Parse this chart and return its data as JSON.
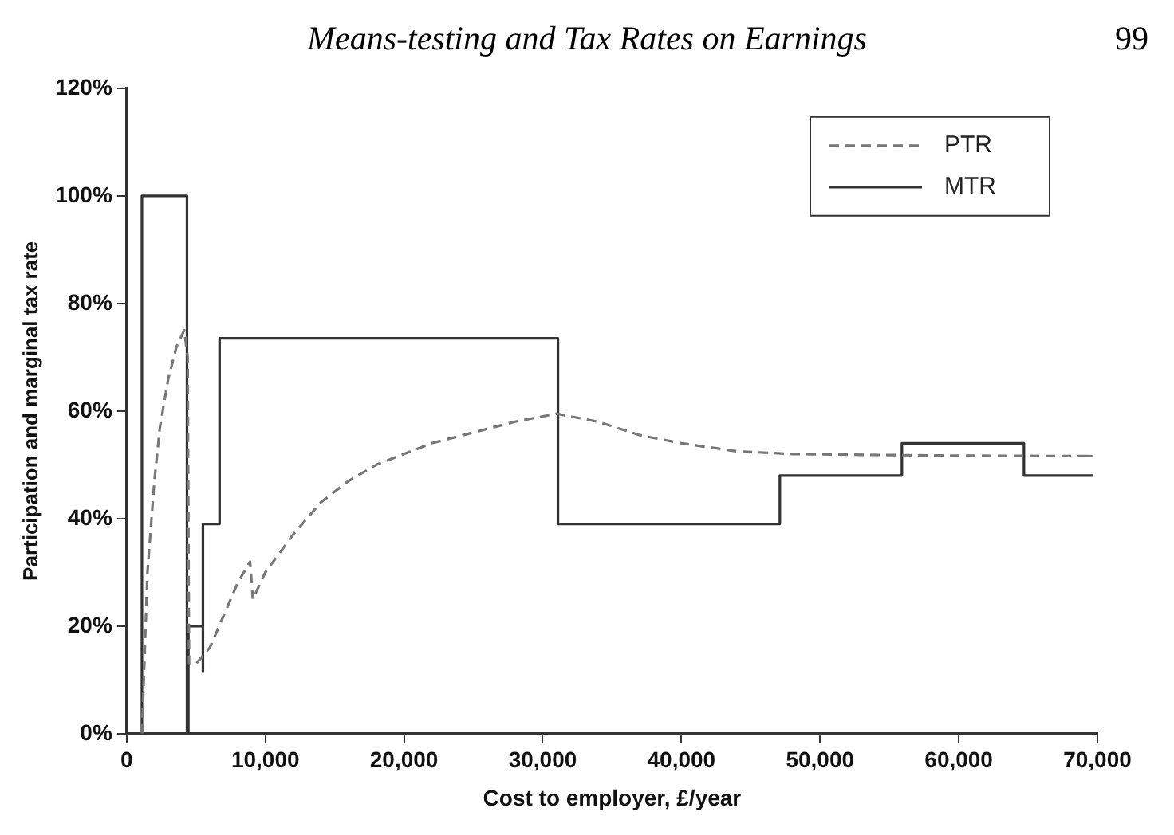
{
  "chart_data": {
    "type": "line",
    "title": "Means-testing and Tax Rates on Earnings",
    "annotations": [
      "99"
    ],
    "xlabel": "Cost to employer, £/year",
    "ylabel": "Participation and marginal tax rate",
    "xlim": [
      0,
      70000
    ],
    "xticks": [
      0,
      {
        "value": 10000,
        "label": "10,000"
      },
      {
        "value": 20000,
        "label": "20,000"
      },
      {
        "value": 30000,
        "label": "30,000"
      },
      {
        "value": 40000,
        "label": "40,000"
      },
      {
        "value": 50000,
        "label": "50,000"
      },
      {
        "value": 60000,
        "label": "60,000"
      },
      {
        "value": 70000,
        "label": "70,000"
      }
    ],
    "ylim": [
      0,
      120
    ],
    "yticks": [
      {
        "value": 0,
        "label": "0%"
      },
      {
        "value": 20,
        "label": "20%"
      },
      {
        "value": 40,
        "label": "40%"
      },
      {
        "value": 60,
        "label": "60%"
      },
      {
        "value": 80,
        "label": "80%"
      },
      {
        "value": 100,
        "label": "100%"
      },
      {
        "value": 120,
        "label": "120%"
      }
    ],
    "grid": false,
    "legend": "top right",
    "marker": "none",
    "series": [
      {
        "name": "PTR",
        "color": "#777777",
        "line_style": "dashed",
        "x": [
          1100,
          1500,
          2000,
          2400,
          3000,
          3600,
          4150,
          4400,
          4500,
          5000,
          6000,
          7000,
          8000,
          8900,
          9100,
          10000,
          12000,
          14000,
          16000,
          18000,
          20000,
          22000,
          25000,
          28000,
          31000,
          34000,
          37000,
          40000,
          44000,
          48000,
          55000,
          60000,
          69700
        ],
        "values": [
          0,
          30,
          47,
          57,
          66,
          72,
          75,
          70,
          13,
          13,
          16,
          22,
          28,
          32,
          25,
          30,
          37,
          43,
          47,
          50,
          52,
          54,
          56,
          58,
          59.5,
          58,
          55.5,
          54,
          52.5,
          52,
          51.8,
          51.7,
          51.6
        ]
      },
      {
        "name": "MTR",
        "color": "#333333",
        "line_style": "solid",
        "x": [
          1100,
          1100,
          4350,
          4350,
          4450,
          4450,
          5500,
          5500,
          5500,
          6700,
          6700,
          31100,
          31100,
          47100,
          47100,
          55900,
          55900,
          64700,
          64700,
          69700
        ],
        "values": [
          0,
          100,
          100,
          0,
          0,
          20,
          20,
          11.5,
          39,
          39,
          73.5,
          73.5,
          39,
          39,
          48,
          48,
          54,
          54,
          48,
          48
        ]
      }
    ]
  }
}
